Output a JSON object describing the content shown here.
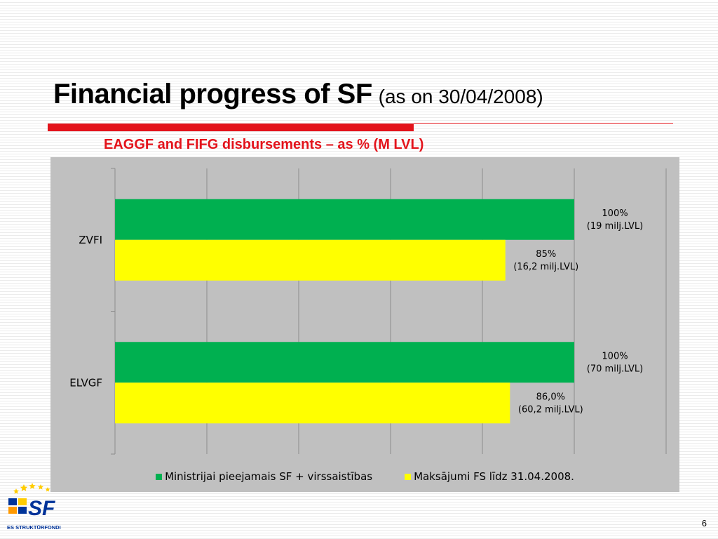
{
  "slide": {
    "title_main": "Financial progress of SF",
    "title_sub": "(as on 30/04/2008)",
    "page_number": "6",
    "logo_text": "SF",
    "logo_caption": "ES STRUKTŪRFONDI"
  },
  "colors": {
    "accent": "#e3131b",
    "series_green": "#00b050",
    "series_yellow": "#ffff00",
    "chart_bg": "#c0c0c0"
  },
  "chart_data": {
    "type": "bar",
    "orientation": "horizontal",
    "title": "EAGGF and FIFG disbursements – as % (M LVL)",
    "categories": [
      "ZVFI",
      "ELVGF"
    ],
    "series": [
      {
        "name": "Ministrijai pieejamais SF + virssaistības",
        "color": "#00b050",
        "values": [
          100,
          100
        ],
        "labels": [
          [
            "100%",
            "(19 milj.LVL)"
          ],
          [
            "100%",
            "(70 milj.LVL)"
          ]
        ]
      },
      {
        "name": "Maksājumi FS līdz 31.04.2008.",
        "color": "#ffff00",
        "values": [
          85,
          86.0
        ],
        "labels": [
          [
            "85%",
            "(16,2 milj.LVL)"
          ],
          [
            "86,0%",
            "(60,2 milj.LVL)"
          ]
        ]
      }
    ],
    "xlim": [
      0,
      120
    ],
    "grid": true,
    "legend": "bottom"
  }
}
